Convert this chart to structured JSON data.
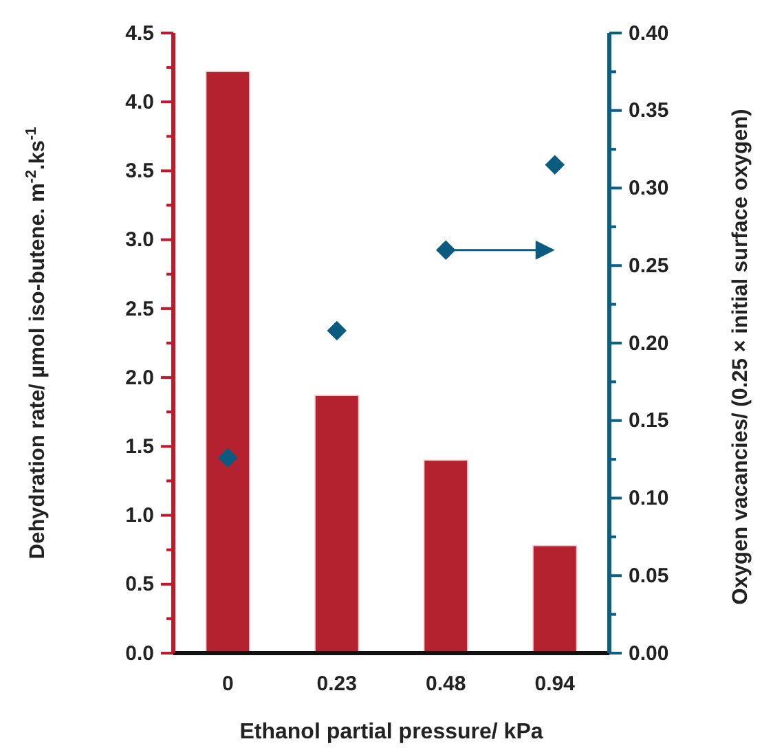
{
  "chart_data": {
    "type": "bar",
    "xlabel": "Ethanol partial pressure/ kPa",
    "ylabel": "Dehydration rate/ µmol iso-butene. m$^{-2}$.ks$^{-1}$",
    "y2label": "Oxygen vacancies/ (0.25 × initial surface oxygen)",
    "categories": [
      "0",
      "0.23",
      "0.48",
      "0.94"
    ],
    "series": [
      {
        "color": "#b5222f",
        "values": [
          4.22,
          1.87,
          1.4,
          0.78
        ]
      },
      {
        "type": "scatter",
        "axis": "y2",
        "marker": "diamond",
        "color": "#0b5a80",
        "values": [
          0.126,
          0.208,
          0.26,
          0.315
        ]
      }
    ],
    "ylim": [
      0,
      4.5
    ],
    "yticks": [
      {
        "value": 0,
        "label": "0.0"
      },
      {
        "value": 0.25,
        "label": null
      },
      0.5,
      {
        "value": 0.75,
        "label": null
      },
      {
        "value": 1,
        "label": "1.0"
      },
      {
        "value": 1.25,
        "label": null
      },
      1.5,
      {
        "value": 1.75,
        "label": null
      },
      {
        "value": 2,
        "label": "2.0"
      },
      {
        "value": 2.25,
        "label": null
      },
      2.5,
      {
        "value": 2.75,
        "label": null
      },
      {
        "value": 3,
        "label": "3.0"
      },
      {
        "value": 3.25,
        "label": null
      },
      3.5,
      {
        "value": 3.75,
        "label": null
      },
      {
        "value": 4,
        "label": "4.0"
      },
      {
        "value": 4.25,
        "label": null
      },
      4.5
    ],
    "y2lim": [
      0,
      0.4
    ],
    "y2ticks": [
      {
        "value": 0,
        "label": "0.00"
      },
      {
        "value": 0.025,
        "label": null
      },
      0.05,
      {
        "value": 0.075,
        "label": null
      },
      {
        "value": 0.1,
        "label": "0.10"
      },
      {
        "value": 0.125,
        "label": null
      },
      0.15,
      {
        "value": 0.175,
        "label": null
      },
      {
        "value": 0.2,
        "label": "0.20"
      },
      {
        "value": 0.225,
        "label": null
      },
      0.25,
      {
        "value": 0.275,
        "label": null
      },
      {
        "value": 0.3,
        "label": "0.30"
      },
      {
        "value": 0.325,
        "label": null
      },
      0.35,
      {
        "value": 0.375,
        "label": null
      },
      {
        "value": 0.4,
        "label": "0.40"
      }
    ],
    "grid": false
  }
}
